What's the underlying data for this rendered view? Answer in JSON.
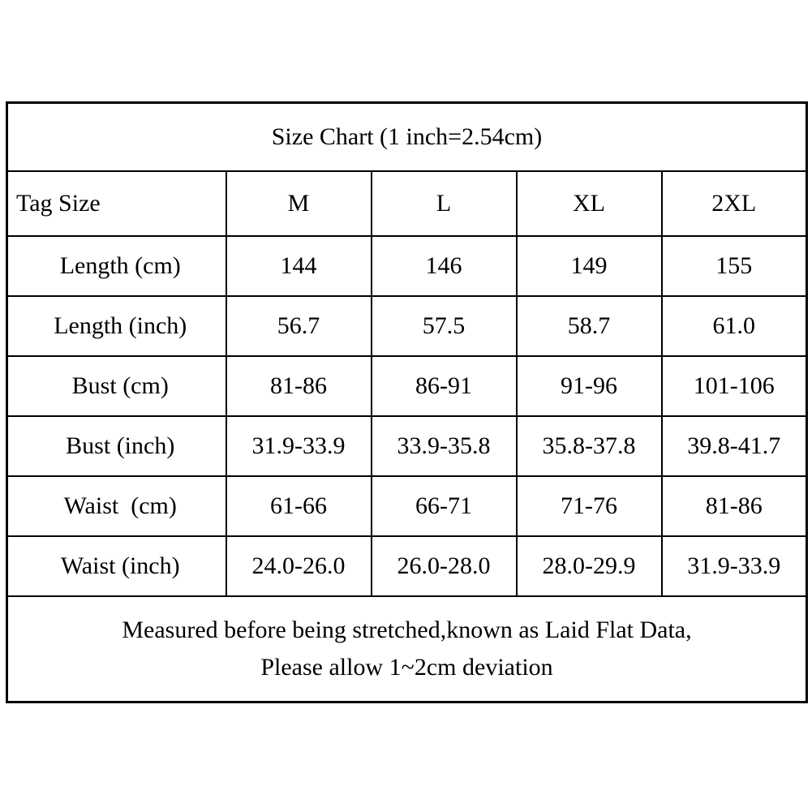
{
  "chart_data": {
    "type": "table",
    "title": "Size Chart (1 inch=2.54cm)",
    "columns": [
      "Tag Size",
      "M",
      "L",
      "XL",
      "2XL"
    ],
    "rows": [
      [
        "Length (cm)",
        "144",
        "146",
        "149",
        "155"
      ],
      [
        "Length (inch)",
        "56.7",
        "57.5",
        "58.7",
        "61.0"
      ],
      [
        "Bust (cm)",
        "81-86",
        "86-91",
        "91-96",
        "101-106"
      ],
      [
        "Bust (inch)",
        "31.9-33.9",
        "33.9-35.8",
        "35.8-37.8",
        "39.8-41.7"
      ],
      [
        "Waist  (cm)",
        "61-66",
        "66-71",
        "71-76",
        "81-86"
      ],
      [
        "Waist (inch)",
        "24.0-26.0",
        "26.0-28.0",
        "28.0-29.9",
        "31.9-33.9"
      ]
    ],
    "footer": [
      "Measured before being stretched,known as Laid Flat Data,",
      "Please allow 1~2cm deviation"
    ],
    "layout": {
      "border_color": "#000000",
      "background": "#ffffff"
    }
  }
}
